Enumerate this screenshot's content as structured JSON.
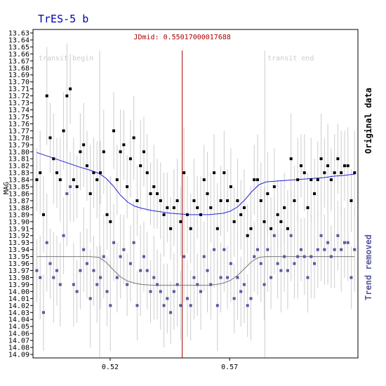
{
  "chart_data": {
    "type": "scatter",
    "title": "TrES-5 b",
    "ylabel": "MAG",
    "xlim": [
      0.4877,
      0.6237
    ],
    "ylim": [
      14.095,
      13.625
    ],
    "y_reversed": true,
    "y_ticks": [
      "13.63",
      "13.64",
      "13.65",
      "13.66",
      "13.67",
      "13.68",
      "13.69",
      "13.70",
      "13.71",
      "13.72",
      "13.73",
      "13.74",
      "13.75",
      "13.76",
      "13.77",
      "13.78",
      "13.79",
      "13.80",
      "13.81",
      "13.82",
      "13.83",
      "13.84",
      "13.85",
      "13.86",
      "13.87",
      "13.88",
      "13.89",
      "13.90",
      "13.91",
      "13.92",
      "13.93",
      "13.94",
      "13.95",
      "13.96",
      "13.97",
      "13.98",
      "13.99",
      "14.00",
      "14.01",
      "14.02",
      "14.03",
      "14.04",
      "14.05",
      "14.06",
      "14.07",
      "14.08",
      "14.09"
    ],
    "x_ticks": [
      "0.52",
      "0.57"
    ],
    "grid": false,
    "annotations": {
      "jdmid_label": "JDmid: 0.55017000017688",
      "jdmid": 0.55017,
      "transit_begin_label": "transit begin",
      "transit_begin": 0.5156,
      "transit_end_label": "transit end",
      "transit_end": 0.5847
    },
    "side_labels": {
      "original": "Original data",
      "trend": "Trend removed"
    },
    "colors": {
      "original": "#000000",
      "detrended": "#5a5aa0",
      "fit_original": "#2222dd",
      "fit_detrended": "#777777",
      "error_bar": "#cccccc",
      "jdmid_line": "#aa0000",
      "title": "#0000aa",
      "transit_markers": "#cccccc"
    },
    "series": [
      {
        "name": "Original data",
        "x": [
          0.4893,
          0.4907,
          0.4921,
          0.4935,
          0.4949,
          0.4963,
          0.4977,
          0.4991,
          0.5005,
          0.5019,
          0.5033,
          0.5047,
          0.5061,
          0.5075,
          0.5089,
          0.5103,
          0.5117,
          0.5131,
          0.5145,
          0.5159,
          0.5173,
          0.5187,
          0.5201,
          0.5215,
          0.5229,
          0.5243,
          0.5257,
          0.5271,
          0.5285,
          0.5299,
          0.5313,
          0.5327,
          0.5341,
          0.5355,
          0.5369,
          0.5383,
          0.5397,
          0.5411,
          0.5425,
          0.5439,
          0.5453,
          0.5467,
          0.5481,
          0.5495,
          0.5509,
          0.5523,
          0.5537,
          0.5551,
          0.5565,
          0.5579,
          0.5593,
          0.5607,
          0.5621,
          0.5635,
          0.5649,
          0.5663,
          0.5677,
          0.5691,
          0.5705,
          0.5719,
          0.5733,
          0.5747,
          0.5761,
          0.5775,
          0.5789,
          0.5803,
          0.5817,
          0.5831,
          0.5845,
          0.5859,
          0.5873,
          0.5887,
          0.5901,
          0.5915,
          0.5929,
          0.5943,
          0.5957,
          0.5971,
          0.5985,
          0.5999,
          0.6013,
          0.6027,
          0.6041,
          0.6055,
          0.6069,
          0.6083,
          0.6097,
          0.6111,
          0.6125,
          0.6139,
          0.6153,
          0.6167,
          0.6181,
          0.6195,
          0.6209,
          0.6223
        ],
        "values": [
          13.84,
          13.83,
          13.89,
          13.72,
          13.78,
          13.81,
          13.83,
          13.84,
          13.77,
          13.72,
          13.71,
          13.84,
          13.85,
          13.8,
          13.79,
          13.82,
          13.86,
          13.83,
          13.84,
          13.83,
          13.8,
          13.89,
          13.9,
          13.77,
          13.84,
          13.8,
          13.79,
          13.85,
          13.81,
          13.78,
          13.87,
          13.82,
          13.8,
          13.83,
          13.86,
          13.85,
          13.86,
          13.87,
          13.89,
          13.88,
          13.91,
          13.88,
          13.87,
          13.9,
          13.83,
          13.89,
          13.91,
          13.87,
          13.88,
          13.89,
          13.84,
          13.86,
          13.88,
          13.83,
          13.91,
          13.87,
          13.83,
          13.87,
          13.85,
          13.9,
          13.87,
          13.89,
          13.88,
          13.92,
          13.91,
          13.84,
          13.84,
          13.87,
          13.9,
          13.86,
          13.91,
          13.85,
          13.89,
          13.9,
          13.88,
          13.91,
          13.81,
          13.87,
          13.84,
          13.82,
          13.83,
          13.88,
          13.84,
          13.86,
          13.84,
          13.81,
          13.83,
          13.82,
          13.84,
          13.83,
          13.81,
          13.83,
          13.82,
          13.82,
          13.87,
          13.83
        ],
        "errors": [
          0.045,
          0.06,
          0.055,
          0.07,
          0.05,
          0.065,
          0.05,
          0.06,
          0.055,
          0.075,
          0.05,
          0.06,
          0.045,
          0.055,
          0.06,
          0.05,
          0.07,
          0.05,
          0.055,
          0.045,
          0.06,
          0.05,
          0.065,
          0.055,
          0.05,
          0.06,
          0.05,
          0.045,
          0.055,
          0.06,
          0.05,
          0.065,
          0.05,
          0.055,
          0.045,
          0.06,
          0.05,
          0.055,
          0.06,
          0.05,
          0.045,
          0.055,
          0.06,
          0.05,
          0.065,
          0.055,
          0.05,
          0.06,
          0.045,
          0.055,
          0.05,
          0.06,
          0.05,
          0.055,
          0.065,
          0.05,
          0.06,
          0.045,
          0.055,
          0.05,
          0.06,
          0.05,
          0.055,
          0.045,
          0.06,
          0.05,
          0.065,
          0.055,
          0.05,
          0.06,
          0.045,
          0.055,
          0.05,
          0.06,
          0.05,
          0.055,
          0.065,
          0.05,
          0.06,
          0.045,
          0.055,
          0.05,
          0.06,
          0.05,
          0.055,
          0.065,
          0.05,
          0.06,
          0.045,
          0.055,
          0.05,
          0.06,
          0.05,
          0.055,
          0.045,
          0.06
        ]
      },
      {
        "name": "Trend removed",
        "x": [
          0.4893,
          0.4907,
          0.4921,
          0.4935,
          0.4949,
          0.4963,
          0.4977,
          0.4991,
          0.5005,
          0.5019,
          0.5033,
          0.5047,
          0.5061,
          0.5075,
          0.5089,
          0.5103,
          0.5117,
          0.5131,
          0.5145,
          0.5159,
          0.5173,
          0.5187,
          0.5201,
          0.5215,
          0.5229,
          0.5243,
          0.5257,
          0.5271,
          0.5285,
          0.5299,
          0.5313,
          0.5327,
          0.5341,
          0.5355,
          0.5369,
          0.5383,
          0.5397,
          0.5411,
          0.5425,
          0.5439,
          0.5453,
          0.5467,
          0.5481,
          0.5495,
          0.5509,
          0.5523,
          0.5537,
          0.5551,
          0.5565,
          0.5579,
          0.5593,
          0.5607,
          0.5621,
          0.5635,
          0.5649,
          0.5663,
          0.5677,
          0.5691,
          0.5705,
          0.5719,
          0.5733,
          0.5747,
          0.5761,
          0.5775,
          0.5789,
          0.5803,
          0.5817,
          0.5831,
          0.5845,
          0.5859,
          0.5873,
          0.5887,
          0.5901,
          0.5915,
          0.5929,
          0.5943,
          0.5957,
          0.5971,
          0.5985,
          0.5999,
          0.6013,
          0.6027,
          0.6041,
          0.6055,
          0.6069,
          0.6083,
          0.6097,
          0.6111,
          0.6125,
          0.6139,
          0.6153,
          0.6167,
          0.6181,
          0.6195,
          0.6209,
          0.6223
        ],
        "values": [
          13.97,
          13.98,
          14.03,
          13.93,
          13.96,
          13.98,
          13.97,
          13.99,
          13.92,
          13.86,
          13.85,
          13.99,
          14.0,
          13.97,
          13.94,
          13.96,
          14.01,
          13.97,
          13.99,
          13.98,
          13.95,
          14.0,
          14.02,
          13.93,
          13.98,
          13.95,
          13.94,
          13.99,
          13.96,
          13.93,
          14.02,
          13.97,
          13.95,
          13.97,
          14.0,
          13.98,
          13.99,
          14.0,
          14.02,
          14.01,
          14.03,
          14.0,
          13.99,
          14.02,
          13.95,
          14.01,
          14.02,
          13.98,
          13.99,
          14.0,
          13.95,
          13.97,
          13.99,
          13.94,
          14.02,
          13.98,
          13.94,
          13.98,
          13.96,
          14.01,
          13.98,
          14.0,
          13.99,
          14.02,
          14.01,
          13.95,
          13.94,
          13.96,
          13.99,
          13.94,
          13.98,
          13.92,
          13.96,
          13.97,
          13.95,
          13.97,
          13.92,
          13.96,
          13.95,
          13.94,
          13.95,
          13.98,
          13.95,
          13.96,
          13.94,
          13.92,
          13.94,
          13.93,
          13.95,
          13.94,
          13.92,
          13.94,
          13.93,
          13.93,
          13.98,
          13.94
        ],
        "errors": [
          0.045,
          0.06,
          0.055,
          0.07,
          0.05,
          0.065,
          0.05,
          0.06,
          0.055,
          0.075,
          0.05,
          0.06,
          0.045,
          0.055,
          0.06,
          0.05,
          0.07,
          0.05,
          0.055,
          0.045,
          0.06,
          0.05,
          0.065,
          0.055,
          0.05,
          0.06,
          0.05,
          0.045,
          0.055,
          0.06,
          0.05,
          0.065,
          0.05,
          0.055,
          0.045,
          0.06,
          0.05,
          0.055,
          0.06,
          0.05,
          0.045,
          0.055,
          0.06,
          0.05,
          0.065,
          0.055,
          0.05,
          0.06,
          0.045,
          0.055,
          0.05,
          0.06,
          0.05,
          0.055,
          0.065,
          0.05,
          0.06,
          0.045,
          0.055,
          0.05,
          0.06,
          0.05,
          0.055,
          0.045,
          0.06,
          0.05,
          0.065,
          0.055,
          0.05,
          0.06,
          0.045,
          0.055,
          0.05,
          0.06,
          0.05,
          0.055,
          0.065,
          0.05,
          0.06,
          0.045,
          0.055,
          0.05,
          0.06,
          0.05,
          0.055,
          0.065,
          0.05,
          0.06,
          0.045,
          0.055,
          0.05,
          0.06,
          0.05,
          0.055,
          0.045,
          0.06
        ]
      }
    ],
    "fits": [
      {
        "name": "Original fit",
        "x": [
          0.4893,
          0.4953,
          0.5013,
          0.5073,
          0.5113,
          0.5153,
          0.5183,
          0.5213,
          0.5243,
          0.5273,
          0.5303,
          0.5333,
          0.5373,
          0.5413,
          0.5453,
          0.5493,
          0.5533,
          0.5573,
          0.5613,
          0.5643,
          0.5673,
          0.5703,
          0.5733,
          0.5763,
          0.5793,
          0.5823,
          0.5853,
          0.5893,
          0.5933,
          0.5973,
          0.6013,
          0.6053,
          0.6093,
          0.6133,
          0.6173,
          0.6223
        ],
        "values": [
          13.801,
          13.808,
          13.815,
          13.822,
          13.826,
          13.831,
          13.838,
          13.849,
          13.862,
          13.872,
          13.878,
          13.881,
          13.884,
          13.886,
          13.888,
          13.889,
          13.89,
          13.89,
          13.89,
          13.889,
          13.888,
          13.885,
          13.879,
          13.869,
          13.857,
          13.847,
          13.843,
          13.842,
          13.841,
          13.84,
          13.839,
          13.838,
          13.837,
          13.835,
          13.834,
          13.832
        ]
      },
      {
        "name": "Trend removed fit",
        "x": [
          0.4893,
          0.4953,
          0.5013,
          0.5073,
          0.5113,
          0.5153,
          0.5183,
          0.5213,
          0.5243,
          0.5273,
          0.5303,
          0.5333,
          0.5373,
          0.5413,
          0.5453,
          0.5493,
          0.5533,
          0.5573,
          0.5613,
          0.5643,
          0.5673,
          0.5703,
          0.5733,
          0.5763,
          0.5793,
          0.5823,
          0.5853,
          0.5893,
          0.5933,
          0.5973,
          0.6013,
          0.6053,
          0.6093,
          0.6133,
          0.6173,
          0.6223
        ],
        "values": [
          13.95,
          13.95,
          13.95,
          13.95,
          13.95,
          13.951,
          13.958,
          13.969,
          13.979,
          13.985,
          13.988,
          13.99,
          13.991,
          13.991,
          13.991,
          13.991,
          13.991,
          13.991,
          13.991,
          13.99,
          13.988,
          13.984,
          13.977,
          13.967,
          13.957,
          13.951,
          13.95,
          13.95,
          13.95,
          13.95,
          13.95,
          13.95,
          13.95,
          13.95,
          13.95,
          13.95
        ]
      }
    ]
  }
}
